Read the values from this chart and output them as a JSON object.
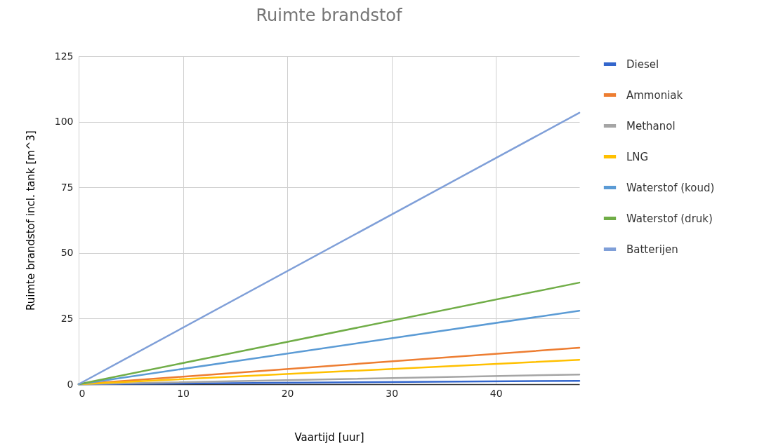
{
  "chart_data": {
    "type": "line",
    "title": "Ruimte brandstof",
    "xlabel": "Vaartijd [uur]",
    "ylabel": "Ruimte brandstof incl. tank [m^3]",
    "x": [
      0,
      48
    ],
    "xlim": [
      0,
      48
    ],
    "xticks": [
      0,
      10,
      20,
      30,
      40
    ],
    "ylim": [
      0,
      125
    ],
    "yticks": [
      0,
      25,
      50,
      75,
      100,
      125
    ],
    "grid": true,
    "legend": "right",
    "marker": "none",
    "line_style": "solid",
    "series": [
      {
        "name": "Diesel",
        "color": "#3366cc",
        "values": [
          0,
          1.3
        ]
      },
      {
        "name": "Ammoniak",
        "color": "#ed7d31",
        "values": [
          0,
          13.9
        ]
      },
      {
        "name": "Methanol",
        "color": "#a5a5a5",
        "values": [
          0,
          3.7
        ]
      },
      {
        "name": "LNG",
        "color": "#ffc000",
        "values": [
          0,
          9.3
        ]
      },
      {
        "name": "Waterstof (koud)",
        "color": "#5b9bd5",
        "values": [
          0,
          28
        ]
      },
      {
        "name": "Waterstof (druk)",
        "color": "#70ad47",
        "values": [
          0,
          38.7
        ]
      },
      {
        "name": "Batterijen",
        "color": "#7f9fd8",
        "values": [
          0,
          103.4
        ]
      }
    ]
  }
}
